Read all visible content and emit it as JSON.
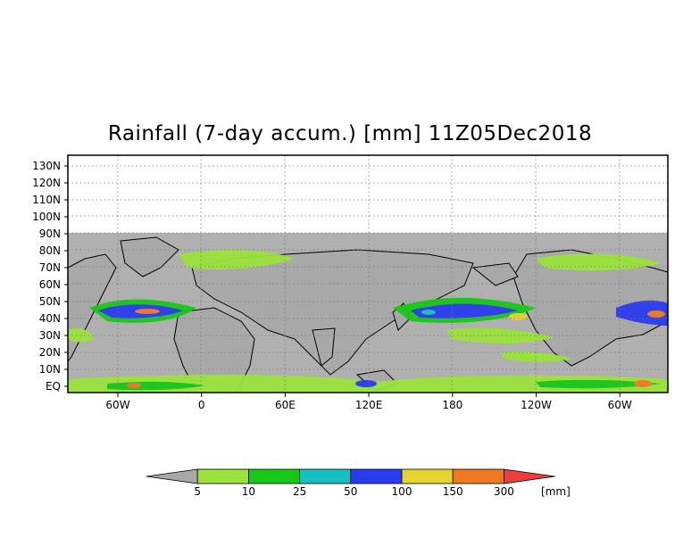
{
  "title": "Rainfall (7-day accum.) [mm] 11Z05Dec2018",
  "map": {
    "lat_ticks": [
      "130N",
      "120N",
      "110N",
      "100N",
      "90N",
      "80N",
      "70N",
      "60N",
      "50N",
      "40N",
      "30N",
      "20N",
      "10N",
      "EQ"
    ],
    "lon_ticks": [
      "60W",
      "0",
      "60E",
      "120E",
      "180",
      "120W",
      "60W"
    ],
    "data_extent_lat": [
      0,
      90
    ],
    "axis_extent_lat": [
      0,
      135
    ],
    "no_data_color": "#b0b0b0",
    "grid": true
  },
  "colorbar": {
    "unit": "[mm]",
    "labels": [
      "5",
      "10",
      "25",
      "50",
      "100",
      "150",
      "300"
    ],
    "colors": [
      "#a8a8a8",
      "#9be23c",
      "#17c817",
      "#16c0c0",
      "#2a3cf0",
      "#e6d42e",
      "#f07820",
      "#f03c3c"
    ]
  }
}
